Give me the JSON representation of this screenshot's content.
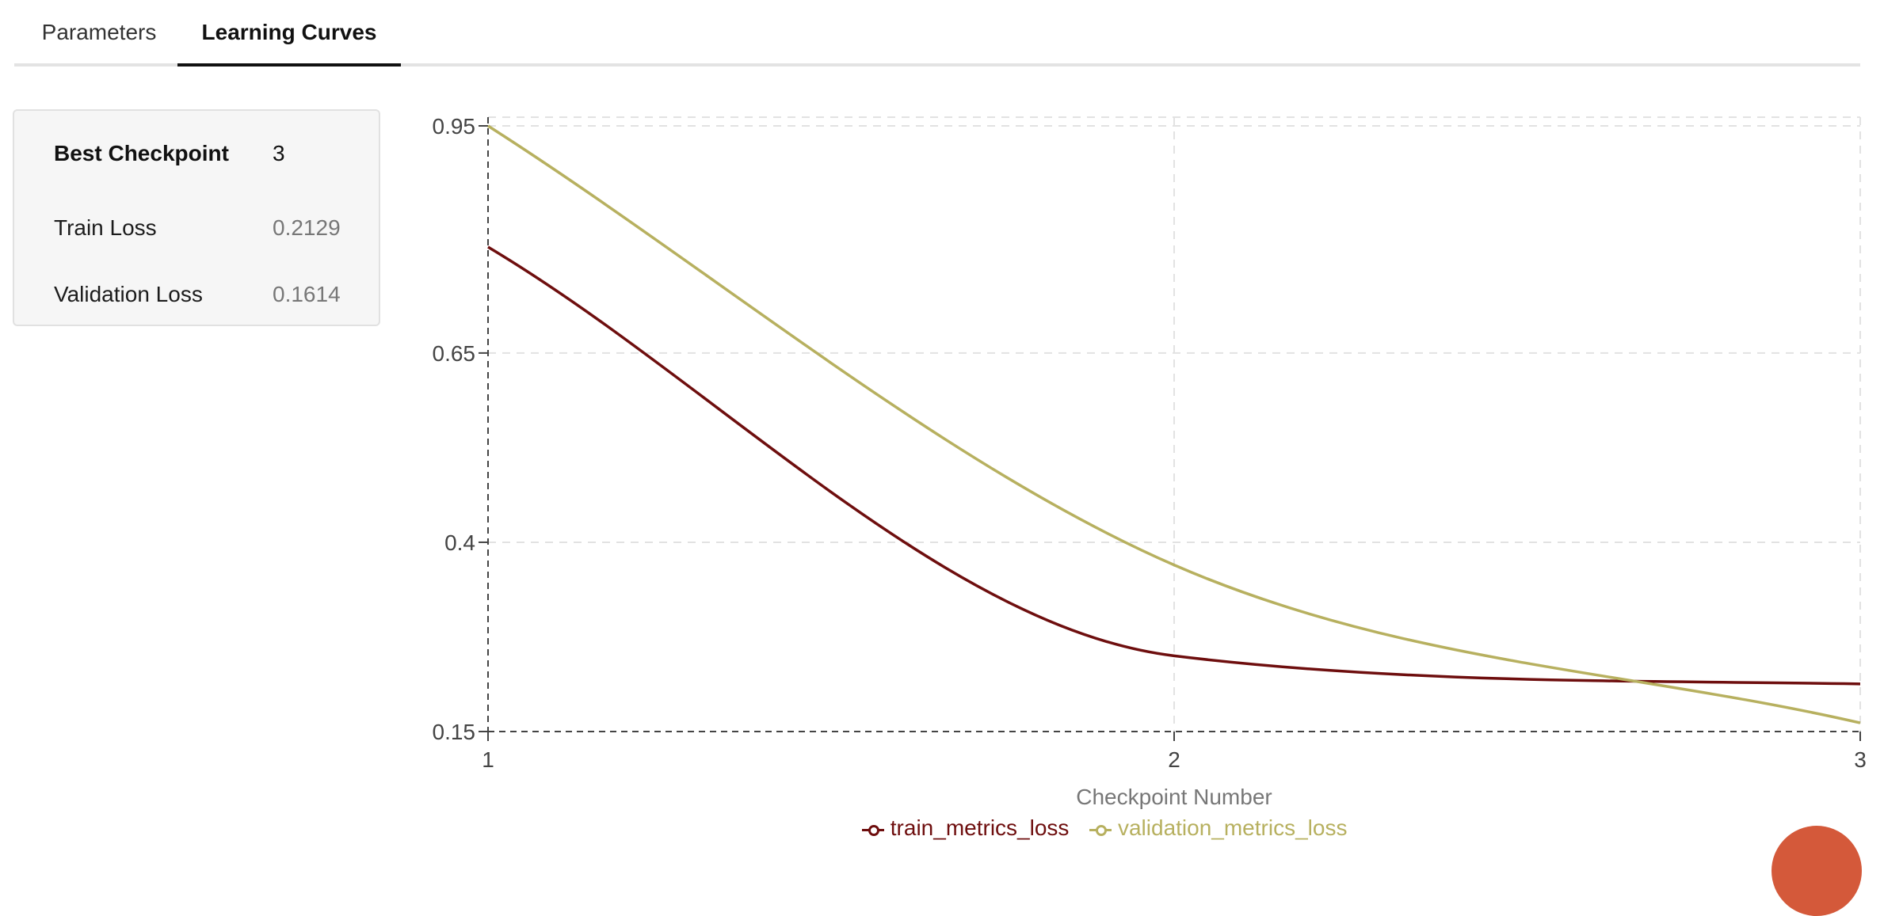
{
  "tabs": [
    {
      "label": "Parameters",
      "active": false
    },
    {
      "label": "Learning Curves",
      "active": true
    }
  ],
  "summary": {
    "best_checkpoint": {
      "label": "Best Checkpoint",
      "value": "3"
    },
    "train_loss": {
      "label": "Train Loss",
      "value": "0.2129"
    },
    "validation_loss": {
      "label": "Validation Loss",
      "value": "0.1614"
    }
  },
  "colors": {
    "train": "#6e0e0e",
    "validation": "#b7b05f",
    "fab": "#d4593a"
  },
  "chart_data": {
    "type": "line",
    "title": "",
    "xlabel": "Checkpoint Number",
    "ylabel": "",
    "x": [
      1,
      2,
      3
    ],
    "x_ticks": [
      "1",
      "2",
      "3"
    ],
    "y_ticks": [
      "0.95",
      "0.65",
      "0.4",
      "0.15"
    ],
    "y_tick_values": [
      0.95,
      0.65,
      0.4,
      0.15
    ],
    "xlim": [
      1,
      3
    ],
    "ylim": [
      0.15,
      0.96
    ],
    "grid": true,
    "legend_position": "bottom",
    "series": [
      {
        "name": "train_metrics_loss",
        "values": [
          0.79,
          0.25,
          0.2129
        ]
      },
      {
        "name": "validation_metrics_loss",
        "values": [
          0.95,
          0.37,
          0.1614
        ]
      }
    ]
  }
}
